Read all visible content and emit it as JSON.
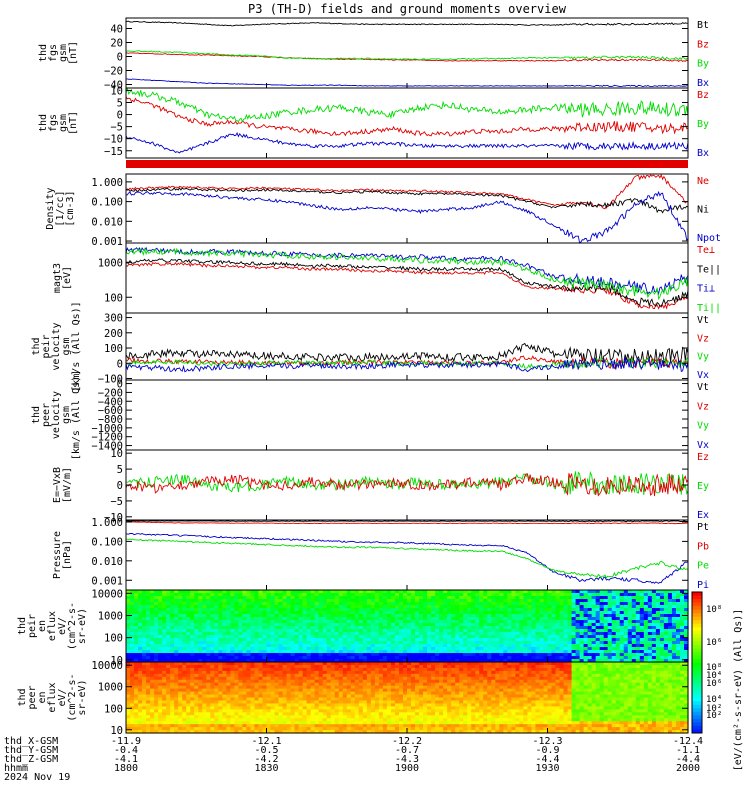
{
  "title": "P3 (TH-D) fields and ground moments overview",
  "colors": {
    "black": "#000000",
    "red": "#e00000",
    "green": "#00dd00",
    "blue": "#0000cc"
  },
  "panels": [
    {
      "id": "fgs",
      "ylabel": [
        "thd",
        "fgs",
        "gsm",
        "[nT]"
      ],
      "type": "line",
      "ylim": [
        -45,
        55
      ],
      "ticks": [
        "40",
        "20",
        "0",
        "−20",
        "−40"
      ],
      "tick_values": [
        40,
        20,
        0,
        -20,
        -40
      ],
      "legend": [
        {
          "label": "Bt",
          "color": "black"
        },
        {
          "label": "Bz",
          "color": "red"
        },
        {
          "label": "By",
          "color": "green"
        },
        {
          "label": "Bx",
          "color": "blue"
        }
      ],
      "series": [
        {
          "name": "Bt",
          "color": "black",
          "base": [
            50,
            49,
            48,
            46,
            44,
            46,
            47,
            48,
            47,
            46,
            46,
            46,
            46,
            46,
            46,
            45,
            45,
            46,
            46,
            46,
            47,
            47
          ],
          "noise": 0.6
        },
        {
          "name": "Bz",
          "color": "red",
          "base": [
            5,
            4,
            3,
            2,
            1,
            0,
            -2,
            -3,
            -4,
            -4,
            -5,
            -5,
            -6,
            -6,
            -6,
            -6,
            -6,
            -5,
            -5,
            -5,
            -5,
            -6
          ],
          "noise": 0.6
        },
        {
          "name": "By",
          "color": "green",
          "base": [
            8,
            7,
            6,
            4,
            2,
            1,
            -2,
            -3,
            -3,
            -3,
            -4,
            -4,
            -4,
            -3,
            -3,
            -2,
            -2,
            -2,
            -1,
            -1,
            -2,
            -3
          ],
          "noise": 0.8
        },
        {
          "name": "Bx",
          "color": "blue",
          "base": [
            -32,
            -34,
            -36,
            -38,
            -39,
            -40,
            -41,
            -41,
            -41,
            -42,
            -42,
            -42,
            -42,
            -42,
            -42,
            -42,
            -42,
            -42,
            -42,
            -42,
            -42,
            -42
          ],
          "noise": 0.4
        }
      ]
    },
    {
      "id": "fgs_zoom",
      "ylabel": [
        "thd",
        "fgs",
        "gsm",
        "[nT]"
      ],
      "type": "line",
      "ylim": [
        -18,
        11
      ],
      "ticks": [
        "10",
        "5",
        "0",
        "−5",
        "−10",
        "−15"
      ],
      "tick_values": [
        10,
        5,
        0,
        -5,
        -10,
        -15
      ],
      "legend": [
        {
          "label": "Bz",
          "color": "red"
        },
        {
          "label": "By",
          "color": "green"
        },
        {
          "label": "Bx",
          "color": "blue"
        }
      ],
      "series": [
        {
          "name": "Bz",
          "color": "red",
          "base": [
            7,
            4,
            -1,
            -4,
            -3,
            -5,
            -6,
            -7,
            -8,
            -7,
            -6,
            -8,
            -8,
            -7,
            -7,
            -6,
            -6,
            -5,
            -5,
            -5,
            -6,
            -5
          ],
          "noise": 1.0
        },
        {
          "name": "By",
          "color": "green",
          "base": [
            10,
            8,
            5,
            0,
            -2,
            -1,
            1,
            2,
            3,
            1,
            0,
            3,
            4,
            2,
            1,
            2,
            3,
            2,
            2,
            3,
            2,
            2
          ],
          "noise": 1.4
        },
        {
          "name": "Bx",
          "color": "blue",
          "base": [
            -9,
            -12,
            -16,
            -12,
            -8,
            -10,
            -12,
            -13,
            -13,
            -12,
            -12,
            -13,
            -13,
            -13,
            -13,
            -13,
            -13,
            -13,
            -13,
            -13,
            -13,
            -13
          ],
          "noise": 0.7
        }
      ]
    },
    {
      "id": "density",
      "ylabel": [
        "Density",
        "[1/cc]",
        "[cm-3]"
      ],
      "type": "log",
      "ylim": [
        -3.1,
        0.4
      ],
      "ticks": [
        "1.000",
        "0.100",
        "0.010",
        "0.001"
      ],
      "tick_values": [
        0,
        -1,
        -2,
        -3
      ],
      "legend": [
        {
          "label": "Ne",
          "color": "red"
        },
        {
          "label": "Ni",
          "color": "black"
        },
        {
          "label": "Npot",
          "color": "blue"
        }
      ],
      "series": [
        {
          "name": "Ne",
          "color": "red",
          "base": [
            -0.35,
            -0.3,
            -0.25,
            -0.3,
            -0.35,
            -0.3,
            -0.35,
            -0.4,
            -0.45,
            -0.4,
            -0.45,
            -0.45,
            -0.5,
            -0.55,
            -0.6,
            -0.9,
            -1.2,
            -1.0,
            -1.3,
            0.2,
            0.3,
            -1.1
          ],
          "noise": 0.05
        },
        {
          "name": "Ni",
          "color": "black",
          "base": [
            -0.45,
            -0.4,
            -0.35,
            -0.4,
            -0.45,
            -0.4,
            -0.45,
            -0.5,
            -0.55,
            -0.5,
            -0.55,
            -0.6,
            -0.6,
            -0.65,
            -0.7,
            -1.0,
            -1.3,
            -1.1,
            -1.2,
            -0.9,
            -1.5,
            -1.2
          ],
          "noise": 0.06
        },
        {
          "name": "Npot",
          "color": "blue",
          "base": [
            -0.6,
            -0.55,
            -0.6,
            -0.7,
            -0.8,
            -0.9,
            -1.0,
            -1.2,
            -1.4,
            -1.3,
            -1.4,
            -1.5,
            -1.4,
            -1.3,
            -1.0,
            -1.5,
            -2.2,
            -3.0,
            -2.5,
            -1.2,
            -0.5,
            -2.9
          ],
          "noise": 0.08
        }
      ]
    },
    {
      "id": "temp",
      "ylabel": [
        "magt3",
        "[eV]"
      ],
      "type": "log",
      "ylim": [
        1.55,
        3.55
      ],
      "ticks": [
        "1000",
        "100"
      ],
      "tick_values": [
        3,
        2
      ],
      "legend": [
        {
          "label": "Te⊥",
          "color": "red"
        },
        {
          "label": "Te||",
          "color": "black"
        },
        {
          "label": "Ti⊥",
          "color": "blue"
        },
        {
          "label": "Ti||",
          "color": "green"
        }
      ],
      "series": [
        {
          "name": "Te⊥",
          "color": "red",
          "base": [
            2.9,
            2.95,
            2.95,
            2.9,
            2.9,
            2.85,
            2.85,
            2.8,
            2.8,
            2.75,
            2.75,
            2.7,
            2.7,
            2.7,
            2.7,
            2.3,
            2.25,
            2.2,
            2.2,
            1.8,
            1.7,
            2.0
          ],
          "noise": 0.04
        },
        {
          "name": "Te||",
          "color": "black",
          "base": [
            3.0,
            3.05,
            3.05,
            3.0,
            3.0,
            2.95,
            2.95,
            2.9,
            2.9,
            2.85,
            2.85,
            2.8,
            2.8,
            2.8,
            2.8,
            2.4,
            2.3,
            2.25,
            2.3,
            1.9,
            1.8,
            2.1
          ],
          "noise": 0.05
        },
        {
          "name": "Ti⊥",
          "color": "blue",
          "base": [
            3.35,
            3.35,
            3.3,
            3.3,
            3.3,
            3.25,
            3.25,
            3.2,
            3.2,
            3.2,
            3.15,
            3.15,
            3.1,
            3.1,
            3.1,
            2.9,
            2.6,
            2.5,
            2.4,
            2.3,
            2.2,
            2.6
          ],
          "noise": 0.07
        },
        {
          "name": "Ti||",
          "color": "green",
          "base": [
            3.3,
            3.3,
            3.3,
            3.25,
            3.25,
            3.2,
            3.2,
            3.15,
            3.15,
            3.1,
            3.1,
            3.05,
            3.05,
            3.0,
            3.0,
            2.8,
            2.5,
            2.4,
            2.3,
            2.2,
            2.1,
            2.5
          ],
          "noise": 0.08
        }
      ]
    },
    {
      "id": "vel_i",
      "ylabel": [
        "thd",
        "peir",
        "velocity",
        "gsm",
        "[km/s (All Qs)]"
      ],
      "type": "line",
      "ylim": [
        -110,
        330
      ],
      "ticks": [
        "300",
        "200",
        "100",
        "0",
        "−100"
      ],
      "tick_values": [
        300,
        200,
        100,
        0,
        -100
      ],
      "legend": [
        {
          "label": "Vt",
          "color": "black"
        },
        {
          "label": "Vz",
          "color": "red"
        },
        {
          "label": "Vy",
          "color": "green"
        },
        {
          "label": "Vx",
          "color": "blue"
        }
      ],
      "series": [
        {
          "name": "Vt",
          "color": "black",
          "base": [
            50,
            60,
            70,
            60,
            55,
            50,
            45,
            40,
            40,
            40,
            45,
            50,
            40,
            40,
            45,
            120,
            60,
            50,
            40,
            40,
            50,
            60
          ],
          "noise": 25
        },
        {
          "name": "Vz",
          "color": "red",
          "base": [
            20,
            15,
            10,
            10,
            5,
            5,
            0,
            0,
            5,
            5,
            10,
            5,
            0,
            0,
            5,
            40,
            10,
            5,
            0,
            0,
            5,
            10
          ],
          "noise": 15
        },
        {
          "name": "Vy",
          "color": "green",
          "base": [
            0,
            5,
            10,
            0,
            -5,
            0,
            5,
            0,
            0,
            5,
            0,
            0,
            -5,
            0,
            5,
            -20,
            -10,
            0,
            5,
            0,
            0,
            5
          ],
          "noise": 15
        },
        {
          "name": "Vx",
          "color": "blue",
          "base": [
            -20,
            -30,
            -40,
            -30,
            -20,
            -20,
            -20,
            -10,
            -20,
            -20,
            -10,
            -10,
            -15,
            -10,
            -5,
            -40,
            -20,
            -10,
            -5,
            0,
            -10,
            -20
          ],
          "noise": 18
        }
      ]
    },
    {
      "id": "vel_e",
      "ylabel": [
        "thd",
        "peer",
        "velocity",
        "gsm",
        "[km/s (All Qs)]"
      ],
      "type": "empty",
      "ylim": [
        -1500,
        80
      ],
      "ticks": [
        "0",
        "−200",
        "−400",
        "−600",
        "−800",
        "−1000",
        "−1200",
        "−1400"
      ],
      "tick_values": [
        0,
        -200,
        -400,
        -600,
        -800,
        -1000,
        -1200,
        -1400
      ],
      "legend": [
        {
          "label": "Vt",
          "color": "black"
        },
        {
          "label": "Vz",
          "color": "red"
        },
        {
          "label": "Vy",
          "color": "green"
        },
        {
          "label": "Vx",
          "color": "blue"
        }
      ],
      "series": []
    },
    {
      "id": "efield",
      "ylabel": [
        "E=−VxB",
        "[mV/m]"
      ],
      "type": "line",
      "ylim": [
        -11,
        11
      ],
      "ticks": [
        "10",
        "5",
        "0",
        "−5",
        "−10"
      ],
      "tick_values": [
        10,
        5,
        0,
        -5,
        -10
      ],
      "legend": [
        {
          "label": "Ez",
          "color": "red"
        },
        {
          "label": "Ey",
          "color": "green"
        },
        {
          "label": "Ex",
          "color": "blue"
        }
      ],
      "series": [
        {
          "name": "Ey",
          "color": "green",
          "base": [
            0,
            1,
            2,
            0,
            -1,
            0,
            1,
            0,
            0,
            1,
            0,
            1,
            0,
            0,
            1,
            2,
            0,
            1,
            0,
            0,
            1,
            0
          ],
          "noise": 1.6
        },
        {
          "name": "Ez",
          "color": "red",
          "base": [
            0,
            -1,
            0,
            1,
            2,
            0,
            0,
            1,
            0,
            0,
            1,
            0,
            0,
            1,
            0,
            2,
            1,
            0,
            0,
            0,
            0,
            0
          ],
          "noise": 1.6
        }
      ]
    },
    {
      "id": "pressure",
      "ylabel": [
        "Pressure",
        "[nPa]"
      ],
      "type": "log",
      "ylim": [
        -3.5,
        0.1
      ],
      "ticks": [
        "1.000",
        "0.100",
        "0.010",
        "0.001"
      ],
      "tick_values": [
        0,
        -1,
        -2,
        -3
      ],
      "legend": [
        {
          "label": "Pt",
          "color": "black"
        },
        {
          "label": "Pb",
          "color": "red"
        },
        {
          "label": "Pe",
          "color": "green"
        },
        {
          "label": "Pi",
          "color": "blue"
        }
      ],
      "series": [
        {
          "name": "Pt",
          "color": "black",
          "base": [
            0.05,
            0.05,
            0.05,
            0.05,
            0.04,
            0.04,
            0.04,
            0.04,
            0.04,
            0.04,
            0.04,
            0.04,
            0.04,
            0.04,
            0.04,
            0.04,
            0.04,
            0.04,
            0.04,
            0.04,
            0.04,
            0.04
          ],
          "noise": 0.01
        },
        {
          "name": "Pb",
          "color": "red",
          "base": [
            0.0,
            -0.02,
            -0.05,
            -0.05,
            -0.06,
            -0.06,
            -0.07,
            -0.07,
            -0.07,
            -0.07,
            -0.07,
            -0.07,
            -0.07,
            -0.07,
            -0.07,
            -0.07,
            -0.07,
            -0.07,
            -0.07,
            -0.07,
            -0.07,
            -0.07
          ],
          "noise": 0.01
        },
        {
          "name": "Pi",
          "color": "blue",
          "base": [
            -0.6,
            -0.65,
            -0.7,
            -0.75,
            -0.8,
            -0.85,
            -0.9,
            -0.95,
            -1.0,
            -1.05,
            -1.05,
            -1.1,
            -1.15,
            -1.2,
            -1.2,
            -1.6,
            -2.6,
            -3.0,
            -2.9,
            -3.0,
            -3.1,
            -2.0
          ],
          "noise": 0.04
        },
        {
          "name": "Pe",
          "color": "green",
          "base": [
            -0.9,
            -0.95,
            -1.0,
            -1.05,
            -1.1,
            -1.15,
            -1.2,
            -1.25,
            -1.3,
            -1.3,
            -1.35,
            -1.4,
            -1.45,
            -1.5,
            -1.5,
            -1.9,
            -2.5,
            -2.7,
            -2.8,
            -2.4,
            -2.1,
            -2.5
          ],
          "noise": 0.04
        }
      ]
    },
    {
      "id": "spec_i",
      "ylabel": [
        "thd",
        "peir",
        "en",
        "eflux",
        "eV/",
        "(cm^2-s-",
        "sr-eV)"
      ],
      "type": "spectrogram",
      "ylim": [
        0.9,
        4.15
      ],
      "ticks": [
        "10000",
        "1000",
        "100",
        "10"
      ],
      "tick_values": [
        4,
        3,
        2,
        1
      ],
      "mode": "ion",
      "legend": []
    },
    {
      "id": "spec_e",
      "ylabel": [
        "thd",
        "peer",
        "en",
        "eflux",
        "eV/",
        "(cm^2-s-",
        "sr-eV)"
      ],
      "type": "spectrogram",
      "ylim": [
        0.85,
        4.15
      ],
      "ticks": [
        "10000",
        "1000",
        "100",
        "10"
      ],
      "tick_values": [
        4,
        3,
        2,
        1
      ],
      "mode": "electron",
      "legend": []
    }
  ],
  "colorbar": {
    "labels": [
      "10⁸",
      "10⁶",
      "10⁴",
      "10²"
    ],
    "unit": "[eV/(cm²-s-sr-eV) (All Qs)]"
  },
  "x_axis": {
    "row_labels": [
      "thd_X-GSM",
      "thd_Y-GSM",
      "thd_Z-GSM",
      "hhmm",
      "2024 Nov 19"
    ],
    "ticks": [
      {
        "x": "-11.9",
        "y": "-0.4",
        "z": "-4.1",
        "t": "1800"
      },
      {
        "x": "-12.1",
        "y": "-0.5",
        "z": "-4.2",
        "t": "1830"
      },
      {
        "x": "-12.2",
        "y": "-0.7",
        "z": "-4.3",
        "t": "1900"
      },
      {
        "x": "-12.3",
        "y": "-0.9",
        "z": "-4.4",
        "t": "1930"
      },
      {
        "x": "-12.4",
        "y": "-1.1",
        "z": "-4.4",
        "t": "2000"
      }
    ]
  }
}
